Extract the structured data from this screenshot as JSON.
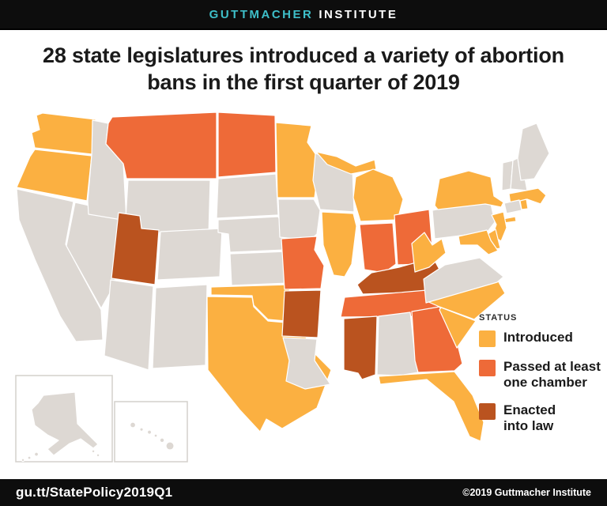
{
  "header": {
    "brand_primary": "GUTTMACHER",
    "brand_secondary": "INSTITUTE"
  },
  "title": "28 state legislatures introduced a variety of abortion bans in the first quarter of 2019",
  "legend": {
    "label": "STATUS",
    "items": [
      {
        "key": "introduced",
        "label": "Introduced",
        "color": "#FBB041"
      },
      {
        "key": "passed",
        "label": "Passed at least\none chamber",
        "color": "#EE6A38"
      },
      {
        "key": "enacted",
        "label": "Enacted\ninto law",
        "color": "#BA531F"
      }
    ]
  },
  "map": {
    "no_action_color": "#DDD8D3",
    "border_color": "#FFFFFF",
    "inset_border_color": "#D4D0CC",
    "states": {
      "WA": "introduced",
      "OR": "introduced",
      "CA": "none",
      "NV": "none",
      "ID": "none",
      "MT": "passed",
      "WY": "none",
      "UT": "enacted",
      "CO": "none",
      "AZ": "none",
      "NM": "none",
      "ND": "passed",
      "SD": "none",
      "NE": "none",
      "KS": "none",
      "OK": "introduced",
      "TX": "introduced",
      "MN": "introduced",
      "IA": "none",
      "MO": "passed",
      "AR": "enacted",
      "LA": "none",
      "WI": "none",
      "MI": "introduced",
      "IL": "introduced",
      "IN": "passed",
      "OH": "passed",
      "KY": "enacted",
      "TN": "passed",
      "MS": "enacted",
      "AL": "none",
      "GA": "passed",
      "FL": "introduced",
      "SC": "introduced",
      "NC": "introduced",
      "VA": "none",
      "WV": "introduced",
      "PA": "none",
      "NY": "introduced",
      "VT": "none",
      "NH": "none",
      "ME": "none",
      "MA": "introduced",
      "RI": "introduced",
      "CT": "none",
      "NJ": "introduced",
      "DE": "introduced",
      "MD": "introduced",
      "AK": "none",
      "HI": "none"
    }
  },
  "footer": {
    "left": "gu.tt/StatePolicy2019Q1",
    "right": "©2019 Guttmacher Institute"
  }
}
